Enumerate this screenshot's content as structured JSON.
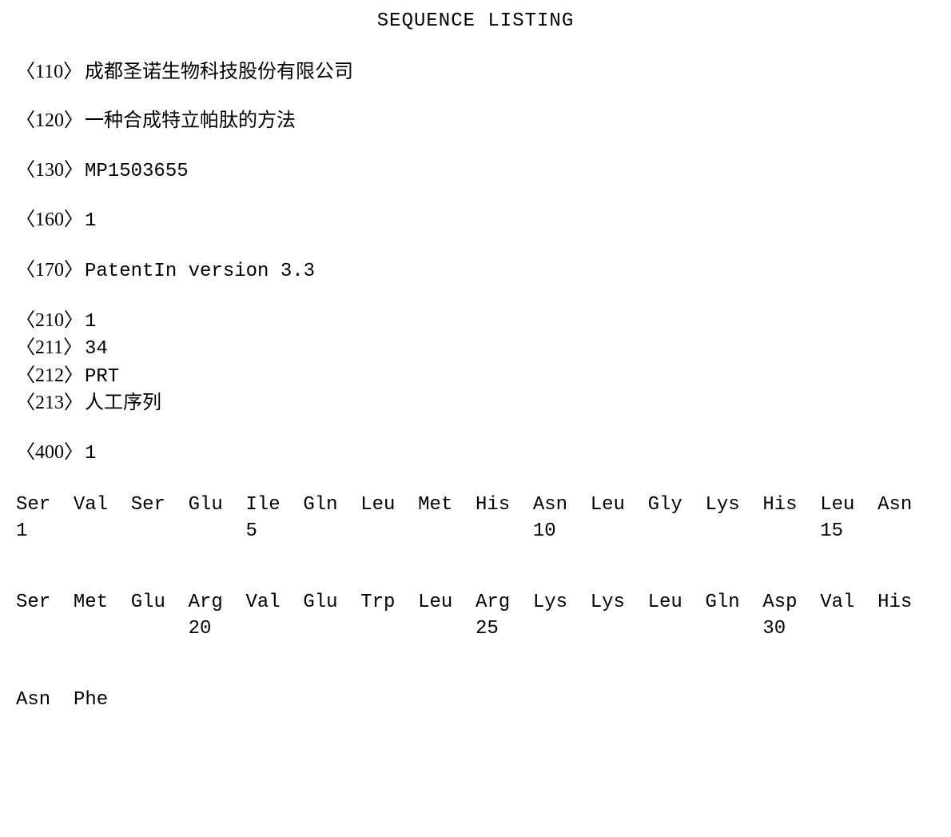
{
  "title": "SEQUENCE LISTING",
  "fields": {
    "tag110": "〈110〉",
    "val110": "成都圣诺生物科技股份有限公司",
    "tag120": "〈120〉",
    "val120": "一种合成特立帕肽的方法",
    "tag130": "〈130〉",
    "val130": "MP1503655",
    "tag160": "〈160〉",
    "val160": "1",
    "tag170": "〈170〉",
    "val170": "PatentIn version 3.3",
    "tag210": "〈210〉",
    "val210": "1",
    "tag211": "〈211〉",
    "val211": "34",
    "tag212": "〈212〉",
    "val212": "PRT",
    "tag213": "〈213〉",
    "val213": "人工序列",
    "tag400": "〈400〉",
    "val400": "1"
  },
  "sequence": {
    "row1": [
      "Ser",
      "Val",
      "Ser",
      "Glu",
      "Ile",
      "Gln",
      "Leu",
      "Met",
      "His",
      "Asn",
      "Leu",
      "Gly",
      "Lys",
      "His",
      "Leu",
      "Asn"
    ],
    "nums1": {
      "p0": "1",
      "p4": "5",
      "p9": "10",
      "p14": "15"
    },
    "row2": [
      "Ser",
      "Met",
      "Glu",
      "Arg",
      "Val",
      "Glu",
      "Trp",
      "Leu",
      "Arg",
      "Lys",
      "Lys",
      "Leu",
      "Gln",
      "Asp",
      "Val",
      "His"
    ],
    "nums2": {
      "p3": "20",
      "p8": "25",
      "p13": "30"
    },
    "row3": [
      "Asn",
      "Phe"
    ]
  }
}
